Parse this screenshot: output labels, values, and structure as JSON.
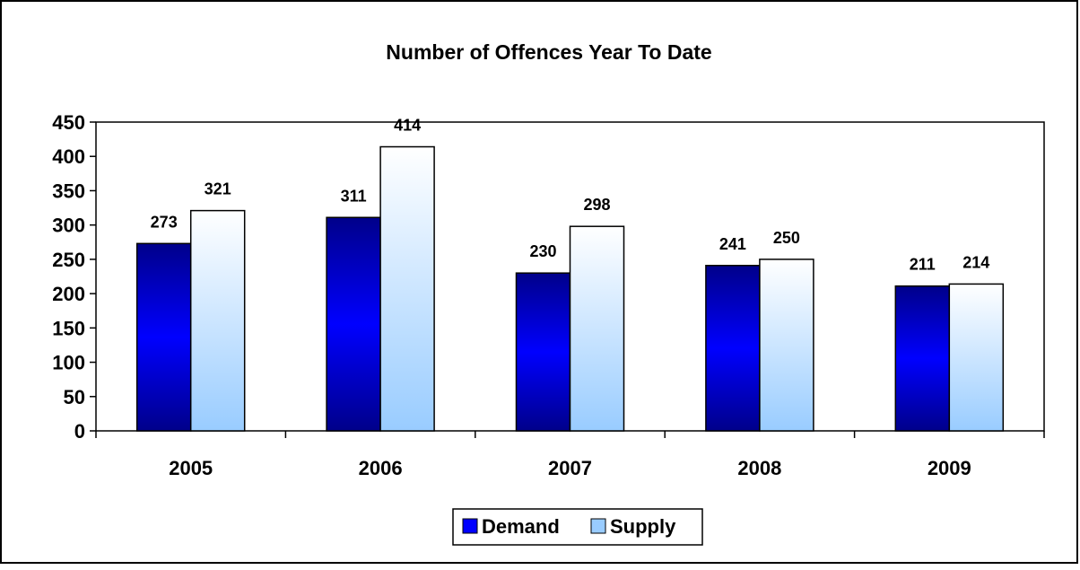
{
  "chart_data": {
    "type": "bar",
    "title": "Number of Offences Year To Date",
    "xlabel": "",
    "ylabel": "",
    "categories": [
      "2005",
      "2006",
      "2007",
      "2008",
      "2009"
    ],
    "series": [
      {
        "name": "Demand",
        "values": [
          273,
          311,
          230,
          241,
          211
        ]
      },
      {
        "name": "Supply",
        "values": [
          321,
          414,
          298,
          250,
          214
        ]
      }
    ],
    "ylim": [
      0,
      450
    ],
    "yticks": [
      0,
      50,
      100,
      150,
      200,
      250,
      300,
      350,
      400,
      450
    ],
    "grid": false,
    "legend_position": "bottom-center",
    "colors": {
      "Demand": "#0000ff",
      "Supply": "#99ccff"
    }
  }
}
